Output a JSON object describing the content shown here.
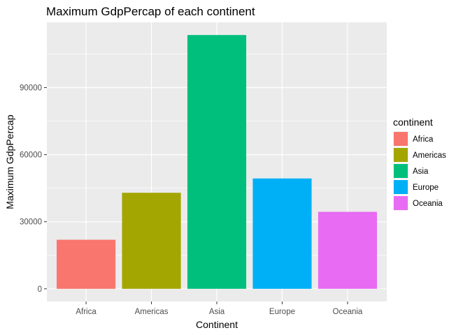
{
  "chart_data": {
    "type": "bar",
    "title": "Maximum GdpPercap of each continent",
    "xlabel": "Continent",
    "ylabel": "Maximum GdpPercap",
    "categories": [
      "Africa",
      "Americas",
      "Asia",
      "Europe",
      "Oceania"
    ],
    "values": [
      21951,
      42952,
      113523,
      49357,
      34435
    ],
    "colors": [
      "#F8766D",
      "#A3A500",
      "#00BF7D",
      "#00B0F6",
      "#E76BF3"
    ],
    "yticks": [
      0,
      30000,
      60000,
      90000
    ],
    "ytick_labels": [
      "0",
      "30000",
      "60000",
      "90000"
    ],
    "ylim": [
      -5676,
      119199
    ],
    "grid": true,
    "legend": {
      "title": "continent",
      "placement": "right",
      "entries": [
        "Africa",
        "Americas",
        "Asia",
        "Europe",
        "Oceania"
      ]
    }
  }
}
